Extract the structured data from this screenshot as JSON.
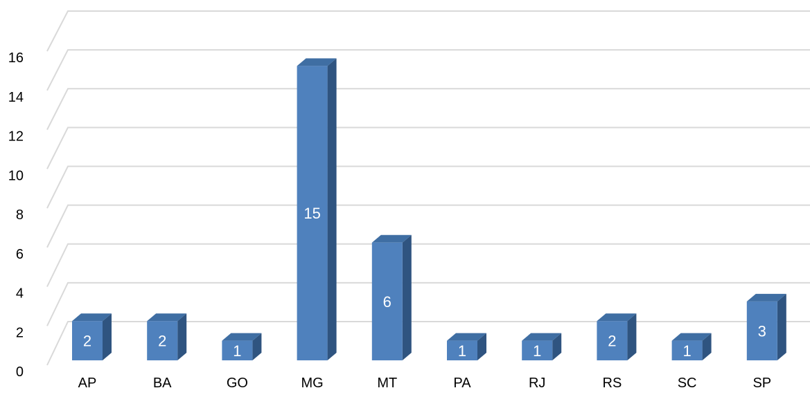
{
  "chart_data": {
    "type": "bar",
    "categories": [
      "AP",
      "BA",
      "GO",
      "MG",
      "MT",
      "PA",
      "RJ",
      "RS",
      "SC",
      "SP"
    ],
    "values": [
      2,
      2,
      1,
      15,
      6,
      1,
      1,
      2,
      1,
      3
    ],
    "ylim": [
      0,
      16
    ],
    "yticks": [
      0,
      2,
      4,
      6,
      8,
      10,
      12,
      14,
      16
    ],
    "grid": true,
    "legend": "none",
    "data_labels": true,
    "colors": {
      "bar_front": "#4f81bd",
      "bar_side": "#2f5480",
      "bar_top": "#3f6ea3",
      "grid": "#d9d9d9",
      "label": "#ffffff"
    }
  }
}
